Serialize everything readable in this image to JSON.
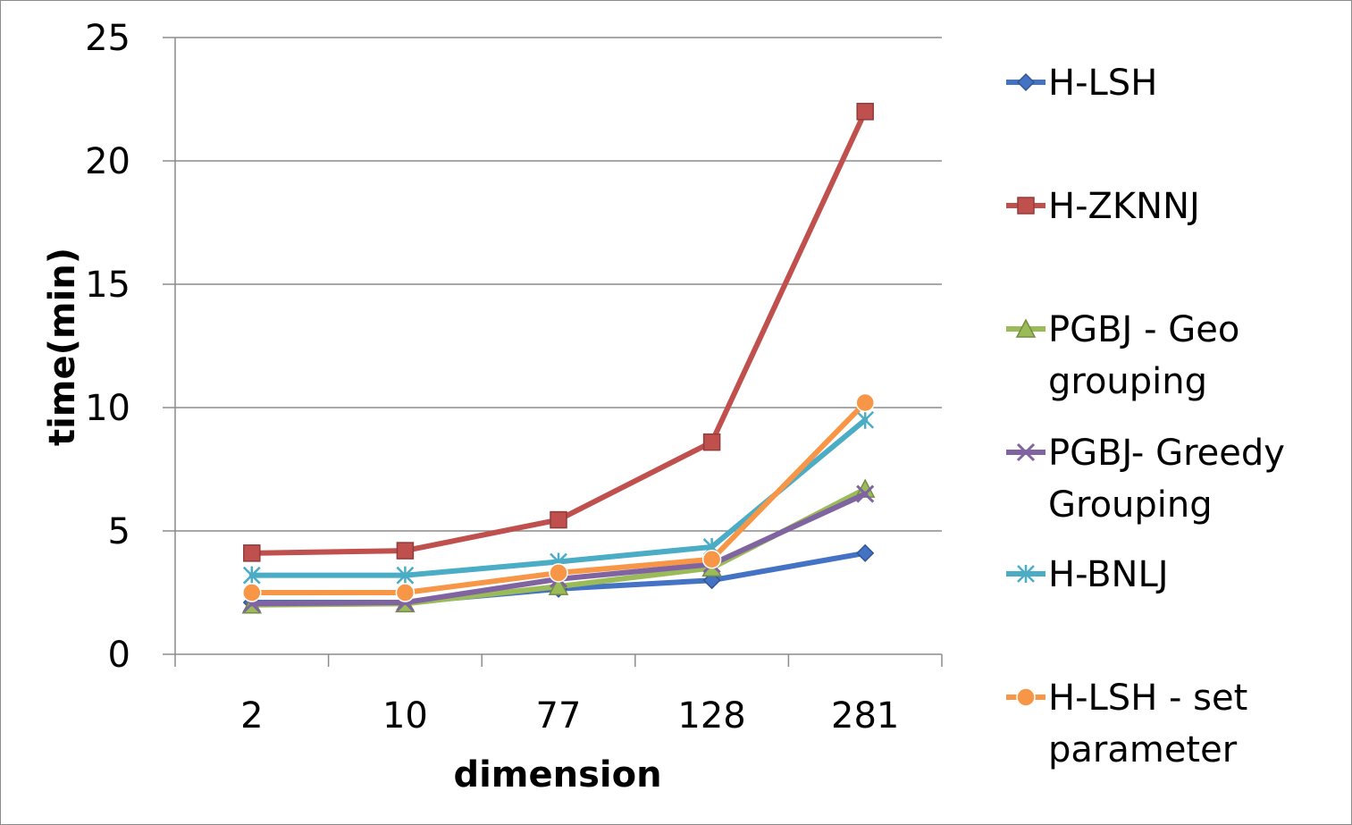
{
  "chart_data": {
    "type": "line",
    "title": "",
    "xlabel": "dimension",
    "ylabel": "time(min)",
    "categories": [
      "2",
      "10",
      "77",
      "128",
      "281"
    ],
    "ylim": [
      0,
      25
    ],
    "yticks": [
      "0",
      "5",
      "10",
      "15",
      "20",
      "25"
    ],
    "grid": "horizontal",
    "legend_position": "right",
    "series": [
      {
        "name": "H-LSH",
        "lines": [
          "H-LSH"
        ],
        "color": "#4472C4",
        "marker": "diamond",
        "values": [
          2.1,
          2.1,
          2.65,
          3.0,
          4.1
        ]
      },
      {
        "name": "H-ZKNNJ",
        "lines": [
          "H-ZKNNJ"
        ],
        "color": "#C0504D",
        "marker": "square",
        "values": [
          4.1,
          4.2,
          5.45,
          8.6,
          22.0
        ]
      },
      {
        "name": "PGBJ - Geo grouping",
        "lines": [
          "PGBJ - Geo",
          "grouping"
        ],
        "color": "#9BBB59",
        "marker": "triangle",
        "values": [
          2.0,
          2.05,
          2.75,
          3.5,
          6.7
        ]
      },
      {
        "name": "PGBJ- Greedy Grouping",
        "lines": [
          "PGBJ- Greedy",
          "Grouping"
        ],
        "color": "#8064A2",
        "marker": "x",
        "values": [
          2.05,
          2.1,
          3.05,
          3.65,
          6.5
        ]
      },
      {
        "name": "H-BNLJ",
        "lines": [
          "H-BNLJ"
        ],
        "color": "#4BACC6",
        "marker": "star",
        "values": [
          3.2,
          3.2,
          3.75,
          4.35,
          9.5
        ]
      },
      {
        "name": "H-LSH - set parameter",
        "lines": [
          "H-LSH - set",
          "parameter"
        ],
        "color": "#F79646",
        "marker": "circle",
        "values": [
          2.5,
          2.5,
          3.3,
          3.85,
          10.2
        ]
      }
    ]
  }
}
